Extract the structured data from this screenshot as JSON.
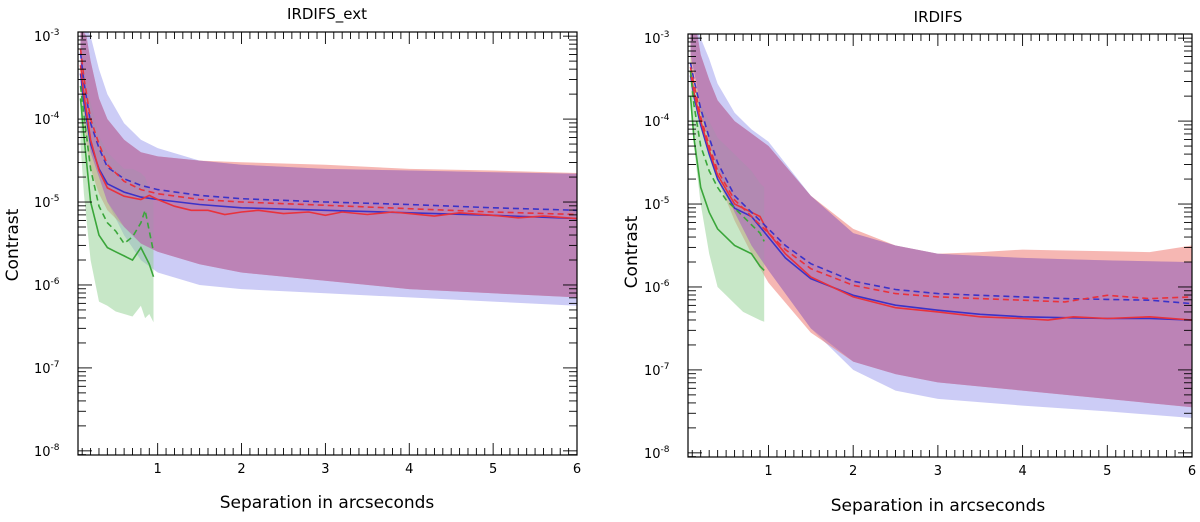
{
  "chart_data": [
    {
      "type": "line",
      "title": "IRDIFS_ext",
      "xlabel": "Separation in arcseconds",
      "ylabel": "Contrast",
      "xlim": [
        0.05,
        6
      ],
      "ylim_log10": [
        -8.05,
        -2.95
      ],
      "xticks": [
        "1",
        "2",
        "3",
        "4",
        "5",
        "6"
      ],
      "xtick_values": [
        1,
        2,
        3,
        4,
        5,
        6
      ],
      "yticks": [
        {
          "base": "10",
          "exp": "-3",
          "value": -3
        },
        {
          "base": "10",
          "exp": "-4",
          "value": -4
        },
        {
          "base": "10",
          "exp": "-5",
          "value": -5
        },
        {
          "base": "10",
          "exp": "-6",
          "value": -6
        },
        {
          "base": "10",
          "exp": "-7",
          "value": -7
        },
        {
          "base": "10",
          "exp": "-8",
          "value": -8
        }
      ],
      "colors": {
        "red": "#e8323c",
        "blue": "#3b32c8",
        "green": "#3aa63a",
        "red_band": "#ee6f68",
        "blue_band": "#9a9aee",
        "green_band": "#8fcf8f",
        "purple_band": "#b07ab8"
      },
      "bands": [
        {
          "name": "blue-band",
          "color": "#9a9aee",
          "x": [
            0.08,
            0.15,
            0.2,
            0.3,
            0.4,
            0.6,
            0.8,
            1.0,
            1.5,
            2,
            3,
            4,
            5,
            6
          ],
          "upper": [
            -2.9,
            -2.9,
            -3.0,
            -3.4,
            -3.7,
            -4.05,
            -4.25,
            -4.35,
            -4.5,
            -4.55,
            -4.6,
            -4.62,
            -4.64,
            -4.66
          ],
          "lower": [
            -3.5,
            -4.0,
            -4.4,
            -4.7,
            -5.0,
            -5.4,
            -5.7,
            -5.85,
            -6.0,
            -6.05,
            -6.1,
            -6.15,
            -6.2,
            -6.25
          ]
        },
        {
          "name": "red-band",
          "color": "#ee6f68",
          "x": [
            0.08,
            0.15,
            0.2,
            0.3,
            0.4,
            0.6,
            0.8,
            1.0,
            1.5,
            2,
            3,
            4,
            5,
            6
          ],
          "upper": [
            -2.9,
            -3.0,
            -3.3,
            -3.75,
            -4.0,
            -4.25,
            -4.4,
            -4.45,
            -4.5,
            -4.52,
            -4.55,
            -4.6,
            -4.62,
            -4.65
          ],
          "lower": [
            -3.6,
            -4.3,
            -4.6,
            -4.9,
            -5.1,
            -5.3,
            -5.5,
            -5.6,
            -5.75,
            -5.85,
            -5.95,
            -6.05,
            -6.1,
            -6.15
          ]
        },
        {
          "name": "green-band",
          "color": "#8fcf8f",
          "x": [
            0.08,
            0.12,
            0.2,
            0.3,
            0.4,
            0.5,
            0.6,
            0.7,
            0.8,
            0.85,
            0.9,
            0.95
          ],
          "upper": [
            -3.3,
            -3.4,
            -3.8,
            -4.2,
            -4.4,
            -4.5,
            -4.6,
            -4.6,
            -4.65,
            -4.7,
            -4.85,
            -5.0
          ],
          "lower": [
            -4.3,
            -4.9,
            -5.7,
            -6.2,
            -6.25,
            -6.32,
            -6.35,
            -6.38,
            -6.25,
            -6.4,
            -6.35,
            -6.45
          ]
        }
      ],
      "series": [
        {
          "name": "blue-solid",
          "color": "#3b32c8",
          "dash": false,
          "x": [
            0.08,
            0.12,
            0.2,
            0.3,
            0.4,
            0.6,
            0.8,
            1.0,
            1.5,
            2,
            3,
            4,
            5,
            6
          ],
          "y": [
            -3.45,
            -3.8,
            -4.3,
            -4.6,
            -4.78,
            -4.88,
            -4.94,
            -4.97,
            -5.03,
            -5.07,
            -5.1,
            -5.13,
            -5.16,
            -5.2
          ]
        },
        {
          "name": "red-solid",
          "color": "#e8323c",
          "dash": false,
          "x": [
            0.08,
            0.12,
            0.2,
            0.3,
            0.4,
            0.6,
            0.8,
            0.9,
            1.0,
            1.2,
            1.4,
            1.6,
            1.8,
            2.0,
            2.2,
            2.5,
            2.8,
            3.0,
            3.2,
            3.5,
            3.8,
            4.0,
            4.3,
            4.6,
            5.0,
            5.3,
            5.6,
            6.0
          ],
          "y": [
            -3.35,
            -3.7,
            -4.25,
            -4.62,
            -4.83,
            -4.93,
            -4.97,
            -4.92,
            -4.97,
            -5.05,
            -5.1,
            -5.1,
            -5.15,
            -5.12,
            -5.1,
            -5.14,
            -5.12,
            -5.16,
            -5.12,
            -5.15,
            -5.12,
            -5.14,
            -5.17,
            -5.13,
            -5.16,
            -5.19,
            -5.17,
            -5.2
          ]
        },
        {
          "name": "blue-dashed",
          "color": "#3b32c8",
          "dash": true,
          "x": [
            0.08,
            0.12,
            0.2,
            0.3,
            0.4,
            0.6,
            0.8,
            1.0,
            1.5,
            2,
            3,
            4,
            5,
            6
          ],
          "y": [
            -3.2,
            -3.55,
            -4.05,
            -4.35,
            -4.58,
            -4.72,
            -4.8,
            -4.85,
            -4.92,
            -4.96,
            -5.0,
            -5.03,
            -5.07,
            -5.1
          ]
        },
        {
          "name": "red-dashed",
          "color": "#e8323c",
          "dash": true,
          "x": [
            0.08,
            0.12,
            0.2,
            0.3,
            0.4,
            0.6,
            0.8,
            1.0,
            1.5,
            2,
            3,
            4,
            5,
            6
          ],
          "y": [
            -3.15,
            -3.5,
            -4.0,
            -4.3,
            -4.55,
            -4.75,
            -4.85,
            -4.9,
            -4.97,
            -5.0,
            -5.04,
            -5.08,
            -5.12,
            -5.15
          ]
        },
        {
          "name": "green-solid",
          "color": "#3aa63a",
          "dash": false,
          "x": [
            0.08,
            0.12,
            0.2,
            0.3,
            0.4,
            0.5,
            0.6,
            0.7,
            0.8,
            0.9,
            0.95
          ],
          "y": [
            -3.75,
            -4.2,
            -5.0,
            -5.4,
            -5.55,
            -5.6,
            -5.65,
            -5.7,
            -5.55,
            -5.75,
            -5.9
          ]
        },
        {
          "name": "green-dashed",
          "color": "#3aa63a",
          "dash": true,
          "x": [
            0.08,
            0.12,
            0.2,
            0.3,
            0.4,
            0.5,
            0.6,
            0.7,
            0.8,
            0.85,
            0.9,
            0.95
          ],
          "y": [
            -3.6,
            -3.95,
            -4.6,
            -5.05,
            -5.25,
            -5.35,
            -5.5,
            -5.42,
            -5.25,
            -5.1,
            -5.35,
            -5.6
          ]
        }
      ]
    },
    {
      "type": "line",
      "title": "IRDIFS",
      "xlabel": "Separation in arcseconds",
      "ylabel": "Contrast",
      "xlim": [
        0.05,
        6
      ],
      "ylim_log10": [
        -8.05,
        -2.95
      ],
      "xticks": [
        "1",
        "2",
        "3",
        "4",
        "5",
        "6"
      ],
      "xtick_values": [
        1,
        2,
        3,
        4,
        5,
        6
      ],
      "yticks": [
        {
          "base": "10",
          "exp": "-3",
          "value": -3
        },
        {
          "base": "10",
          "exp": "-4",
          "value": -4
        },
        {
          "base": "10",
          "exp": "-5",
          "value": -5
        },
        {
          "base": "10",
          "exp": "-6",
          "value": -6
        },
        {
          "base": "10",
          "exp": "-7",
          "value": -7
        },
        {
          "base": "10",
          "exp": "-8",
          "value": -8
        }
      ],
      "colors": {
        "red": "#e8323c",
        "blue": "#3b32c8",
        "green": "#3aa63a",
        "red_band": "#ee6f68",
        "blue_band": "#9a9aee",
        "green_band": "#8fcf8f",
        "purple_band": "#b07ab8"
      },
      "bands": [
        {
          "name": "blue-band",
          "color": "#9a9aee",
          "x": [
            0.08,
            0.15,
            0.2,
            0.3,
            0.4,
            0.6,
            0.8,
            1.0,
            1.5,
            2,
            2.5,
            3,
            4,
            5,
            6
          ],
          "upper": [
            -2.9,
            -2.9,
            -3.0,
            -3.25,
            -3.55,
            -3.9,
            -4.1,
            -4.25,
            -4.9,
            -5.35,
            -5.5,
            -5.6,
            -5.65,
            -5.68,
            -5.7
          ],
          "lower": [
            -3.2,
            -3.55,
            -3.9,
            -4.25,
            -4.6,
            -5.1,
            -5.5,
            -5.8,
            -6.5,
            -7.0,
            -7.25,
            -7.35,
            -7.43,
            -7.5,
            -7.58
          ]
        },
        {
          "name": "red-band",
          "color": "#ee6f68",
          "x": [
            0.08,
            0.15,
            0.2,
            0.3,
            0.4,
            0.6,
            0.8,
            1.0,
            1.5,
            2,
            2.5,
            3,
            3.5,
            4,
            4.5,
            5,
            5.5,
            6
          ],
          "upper": [
            -2.9,
            -2.9,
            -3.2,
            -3.5,
            -3.75,
            -4.0,
            -4.15,
            -4.3,
            -4.9,
            -5.3,
            -5.5,
            -5.6,
            -5.58,
            -5.55,
            -5.56,
            -5.57,
            -5.58,
            -5.5
          ],
          "lower": [
            -3.3,
            -3.7,
            -4.0,
            -4.35,
            -4.7,
            -5.2,
            -5.6,
            -5.95,
            -6.55,
            -6.9,
            -7.05,
            -7.15,
            -7.2,
            -7.25,
            -7.3,
            -7.35,
            -7.4,
            -7.45
          ]
        },
        {
          "name": "green-band",
          "color": "#8fcf8f",
          "x": [
            0.08,
            0.12,
            0.2,
            0.3,
            0.4,
            0.5,
            0.6,
            0.7,
            0.8,
            0.9,
            0.95
          ],
          "upper": [
            -3.2,
            -3.5,
            -3.8,
            -4.0,
            -4.2,
            -4.3,
            -4.4,
            -4.5,
            -4.6,
            -4.75,
            -4.8
          ],
          "lower": [
            -3.8,
            -4.3,
            -5.0,
            -5.6,
            -6.0,
            -6.1,
            -6.2,
            -6.3,
            -6.35,
            -6.4,
            -6.42
          ]
        }
      ],
      "series": [
        {
          "name": "blue-solid",
          "color": "#3b32c8",
          "dash": false,
          "x": [
            0.08,
            0.12,
            0.2,
            0.3,
            0.4,
            0.6,
            0.8,
            1.0,
            1.2,
            1.5,
            2,
            2.5,
            3,
            3.5,
            4,
            4.5,
            5,
            5.5,
            6
          ],
          "y": [
            -3.45,
            -3.7,
            -4.05,
            -4.4,
            -4.7,
            -5.05,
            -5.15,
            -5.4,
            -5.65,
            -5.9,
            -6.1,
            -6.22,
            -6.28,
            -6.33,
            -6.36,
            -6.37,
            -6.38,
            -6.38,
            -6.4
          ]
        },
        {
          "name": "red-solid",
          "color": "#e8323c",
          "dash": false,
          "x": [
            0.08,
            0.12,
            0.2,
            0.3,
            0.4,
            0.6,
            0.8,
            0.9,
            1.0,
            1.2,
            1.5,
            2,
            2.5,
            3,
            3.5,
            4,
            4.3,
            4.6,
            5,
            5.5,
            6
          ],
          "y": [
            -3.4,
            -3.65,
            -4.0,
            -4.35,
            -4.65,
            -5.0,
            -5.1,
            -5.15,
            -5.35,
            -5.6,
            -5.88,
            -6.12,
            -6.25,
            -6.3,
            -6.36,
            -6.38,
            -6.4,
            -6.36,
            -6.38,
            -6.36,
            -6.4
          ]
        },
        {
          "name": "blue-dashed",
          "color": "#3b32c8",
          "dash": true,
          "x": [
            0.08,
            0.12,
            0.2,
            0.3,
            0.4,
            0.6,
            0.8,
            1.0,
            1.2,
            1.5,
            2,
            2.5,
            3,
            3.5,
            4,
            4.5,
            5,
            5.5,
            6
          ],
          "y": [
            -3.3,
            -3.5,
            -3.85,
            -4.2,
            -4.5,
            -4.9,
            -5.1,
            -5.3,
            -5.5,
            -5.72,
            -5.93,
            -6.03,
            -6.08,
            -6.1,
            -6.12,
            -6.14,
            -6.15,
            -6.16,
            -6.2
          ]
        },
        {
          "name": "red-dashed",
          "color": "#e8323c",
          "dash": true,
          "x": [
            0.08,
            0.12,
            0.2,
            0.3,
            0.4,
            0.6,
            0.8,
            1.0,
            1.2,
            1.5,
            2,
            2.5,
            3,
            3.5,
            4,
            4.5,
            5,
            5.5,
            6
          ],
          "y": [
            -3.35,
            -3.55,
            -3.95,
            -4.3,
            -4.6,
            -4.95,
            -5.15,
            -5.35,
            -5.55,
            -5.78,
            -5.98,
            -6.08,
            -6.12,
            -6.14,
            -6.16,
            -6.18,
            -6.1,
            -6.14,
            -6.12
          ]
        },
        {
          "name": "green-solid",
          "color": "#3aa63a",
          "dash": false,
          "x": [
            0.08,
            0.12,
            0.2,
            0.3,
            0.4,
            0.5,
            0.6,
            0.7,
            0.8,
            0.9,
            0.95
          ],
          "y": [
            -3.7,
            -4.2,
            -4.8,
            -5.1,
            -5.3,
            -5.4,
            -5.5,
            -5.55,
            -5.6,
            -5.75,
            -5.8
          ]
        },
        {
          "name": "green-dashed",
          "color": "#3aa63a",
          "dash": true,
          "x": [
            0.08,
            0.12,
            0.2,
            0.3,
            0.4,
            0.5,
            0.6,
            0.7,
            0.8,
            0.9,
            0.95
          ],
          "y": [
            -3.4,
            -3.8,
            -4.3,
            -4.6,
            -4.8,
            -4.95,
            -5.05,
            -5.15,
            -5.25,
            -5.35,
            -5.45
          ]
        }
      ]
    }
  ]
}
